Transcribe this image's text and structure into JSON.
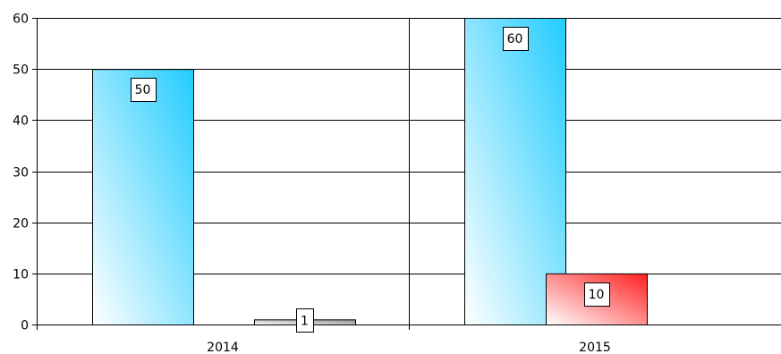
{
  "chart_data": {
    "type": "bar",
    "title": "",
    "xlabel": "",
    "ylabel": "",
    "categories": [
      "2014",
      "2015"
    ],
    "ylim": [
      0,
      60
    ],
    "yticks": [
      0,
      10,
      20,
      30,
      40,
      50,
      60
    ],
    "grid": true,
    "legend": "none",
    "series": [
      {
        "values": [
          50,
          60
        ],
        "labels": [
          "50",
          "60"
        ],
        "color": "#22ccff",
        "color_light": "#ffffff"
      },
      {
        "values": [
          1,
          10
        ],
        "labels": [
          "1",
          "10"
        ],
        "colors": [
          "#8c8c8c",
          "#ff2020"
        ],
        "color_light": "#ffffff"
      }
    ]
  }
}
